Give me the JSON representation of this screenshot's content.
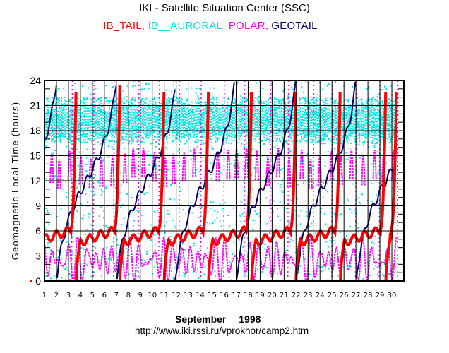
{
  "chart_data": {
    "type": "scatter",
    "title": "IKI - Satellite Situation Center (SSC)",
    "legend_position": "top-center",
    "series": [
      {
        "name": "IB_TAIL",
        "color": "#ff0000",
        "style": "thick-dotted-line",
        "description": "MLT drifts ~4.5-6.5h then sweeps 6->24 and wraps to 0 about every 3.7 days",
        "wrap_days": [
          3.65,
          7.3,
          11.0,
          14.7,
          18.3,
          22.0,
          25.7,
          29.5
        ]
      },
      {
        "name": "IB__AURORAL",
        "color": "#00e5e5",
        "style": "scattered-dots",
        "description": "dense dots all local times, densest band ~17-22h"
      },
      {
        "name": "POLAR",
        "color": "#ff00ff",
        "style": "dotted-oscillating",
        "description": "oscillations 0-5h and 11-15h with frequent full-range passes"
      },
      {
        "name": "GEOTAIL",
        "color": "#000066",
        "style": "thin-line",
        "description": "MLT rising monotonically 0->24 about every 5 days",
        "wrap_days": [
          2.0,
          7.0,
          11.9,
          17.0,
          22.0,
          27.0
        ]
      }
    ],
    "x": {
      "label": "September 1998",
      "ticks": [
        "1",
        "2",
        "3",
        "4",
        "5",
        "6",
        "7",
        "8",
        "9",
        "10",
        "11",
        "12",
        "13",
        "14",
        "15",
        "16",
        "17",
        "18",
        "19",
        "20",
        "21",
        "22",
        "23",
        "24",
        "25",
        "26",
        "27",
        "28",
        "29",
        "30"
      ],
      "range": [
        1,
        31
      ]
    },
    "y": {
      "label": "Geomagnetic Local Time (hours)",
      "ticks": [
        "0",
        "3",
        "6",
        "9",
        "12",
        "15",
        "18",
        "21",
        "24"
      ],
      "range": [
        0,
        24
      ]
    },
    "grid": true
  },
  "header": {
    "title": "IKI - Satellite Situation Center (SSC)",
    "legend": [
      {
        "text": "IB_TAIL,",
        "color": "#ff0000"
      },
      {
        "text": " IB__AURORAL,",
        "color": "#00e5e5"
      },
      {
        "text": " POLAR,",
        "color": "#ff00ff"
      },
      {
        "text": " GEOTAIL",
        "color": "#000066"
      }
    ]
  },
  "footer": {
    "month": "September 1998",
    "url": "http://www.iki.rssi.ru/vprokhor/camp2.htm"
  }
}
